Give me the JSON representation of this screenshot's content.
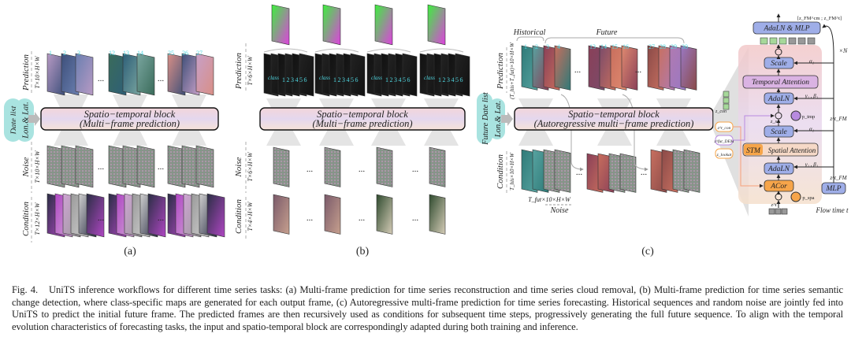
{
  "panel_a": {
    "label": "(a)",
    "block_title": "Spatio−temporal block",
    "block_subtitle": "(Multi−frame prediction)",
    "inputs": [
      "Date list",
      "Lon.& Lat."
    ],
    "rows": [
      {
        "name": "Prediction",
        "dim": "T×10×H×W"
      },
      {
        "name": "Noise",
        "dim": "T×10×H×W"
      },
      {
        "name": "Condition",
        "dim": "T×12×H×W"
      }
    ],
    "frame_numbers": [
      "1",
      "2",
      "3",
      "12",
      "13",
      "14",
      "25",
      "26",
      "27"
    ],
    "ellipsis": "..."
  },
  "panel_b": {
    "label": "(b)",
    "block_title": "Spatio−temporal block",
    "block_subtitle": "(Multi−frame prediction)",
    "rows": [
      {
        "name": "Prediction",
        "dim": "T×6×H×W"
      },
      {
        "name": "Noise",
        "dim": "T×6×H×W"
      },
      {
        "name": "Condition",
        "dim": "T×4×H×W"
      }
    ],
    "class_label": "class",
    "class_numbers": [
      "1",
      "2",
      "3",
      "4",
      "5",
      "6"
    ],
    "ellipsis": "..."
  },
  "panel_c": {
    "label": "(c)",
    "block_title": "Spatio−temporal block",
    "block_subtitle": "(Autoregressive multi−frame prediction)",
    "inputs": [
      "Future Date list",
      "Lon.& Lat."
    ],
    "historical_label": "Historical",
    "future_label": "Future",
    "rows": [
      {
        "name": "Prediction",
        "dim": "(T_his+T_fut)×10×H×W"
      },
      {
        "name": "Condition",
        "dim": "T_his×10×H×W"
      }
    ],
    "noise_dim": "T_fut×10×H×W",
    "noise_label": "Noise",
    "frame_numbers": [
      "1",
      "2",
      "3",
      "4",
      "13",
      "14",
      "15",
      "16",
      "27",
      "28",
      "29",
      "30"
    ],
    "ellipsis": "..."
  },
  "architecture": {
    "top_block": "AdaLN & MLP",
    "top_input": "[z_FM^cm ; z_FM^t]",
    "repeat": "×N",
    "scale": "Scale",
    "temporal_attention": "Temporal Attention",
    "adaln": "AdaLN",
    "stm": "STM",
    "spatial_attention": "Spatial Attention",
    "acor": "ACor",
    "mlp": "MLP",
    "flow_time": "Flow time t",
    "alpha": "α₁",
    "gamma_beta": "γ₁ , β₁",
    "z_fm": "z^t_FM",
    "p_tmp": "p_tmp",
    "p_spa": "p_spa",
    "z_in": "z^t",
    "z_mid": "z_s",
    "z_con_top": "z_con",
    "side_inputs": [
      "z^t_con",
      "z^fut_DEM",
      "z_lookat"
    ]
  },
  "colors": {
    "pill": "#a9e3e0",
    "block_top": "#f2d7dc",
    "block_mid": "#e3d6ee",
    "frame_number": "#4fd6e0",
    "arch_blue": "#9faee8",
    "arch_purple": "#dab3e3",
    "arch_orange": "#f6a54a",
    "arch_peach": "#f6d9c7"
  },
  "caption": {
    "fig": "Fig. 4.",
    "text": "UniTS inference workflows for different time series tasks: (a) Multi-frame prediction for time series reconstruction and time series cloud removal, (b) Multi-frame prediction for time series semantic change detection, where class-specific maps are generated for each output frame, (c) Autoregressive multi-frame prediction for time series forecasting. Historical sequences and random noise are jointly fed into UniTS to predict the initial future frame. The predicted frames are then recursively used as conditions for subsequent time steps, progressively generating the full future sequence. To align with the temporal evolution characteristics of forecasting tasks, the input and spatio-temporal block are correspondingly adapted during both training and inference."
  }
}
